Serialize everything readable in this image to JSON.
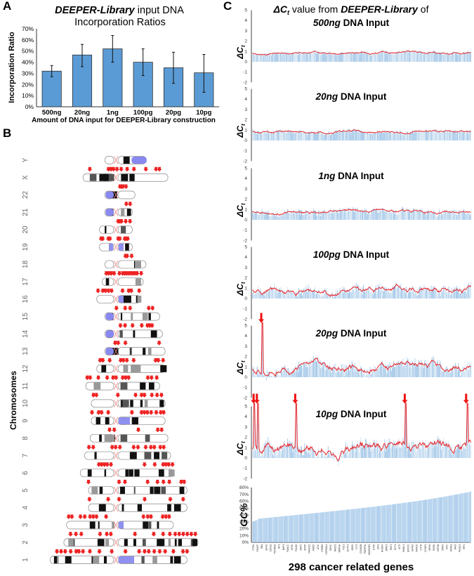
{
  "panels": {
    "a_letter": "A",
    "b_letter": "B",
    "c_letter": "C"
  },
  "chart_data": [
    {
      "id": "A",
      "type": "bar",
      "title_italic": "DEEPER-Library",
      "title_rest": " input DNA",
      "title_line2": "Incorporation Ratios",
      "xlabel": "Amount of DNA input for DEEPER-Library construction",
      "ylabel": "Incorporation Ratio",
      "categories": [
        "500ng",
        "20ng",
        "1ng",
        "100pg",
        "20pg",
        "10pg"
      ],
      "values": [
        0.32,
        0.465,
        0.52,
        0.4,
        0.35,
        0.305
      ],
      "error_low": [
        0.27,
        0.36,
        0.4,
        0.28,
        0.21,
        0.13
      ],
      "error_high": [
        0.37,
        0.56,
        0.64,
        0.52,
        0.49,
        0.47
      ],
      "ylim": [
        0,
        0.7
      ],
      "yticks": [
        "0%",
        "10%",
        "20%",
        "30%",
        "40%",
        "50%",
        "60%",
        "70%"
      ],
      "bar_color": "#5b9bd5",
      "grid": false
    },
    {
      "id": "B",
      "type": "ideogram",
      "ylabel": "Chromosomes",
      "chromosomes": [
        {
          "name": "Y",
          "p": 0.2,
          "q": 0.55,
          "marks": []
        },
        {
          "name": "X",
          "p": 0.6,
          "q": 0.95,
          "marks": [
            0.08,
            0.3,
            0.33,
            0.36,
            0.4,
            0.45,
            0.52,
            0.6,
            0.74,
            0.86,
            0.9
          ]
        },
        {
          "name": "22",
          "p": 0.2,
          "q": 0.35,
          "marks": [
            0.5,
            0.55,
            0.6,
            0.7
          ]
        },
        {
          "name": "21",
          "p": 0.2,
          "q": 0.3,
          "marks": [
            0.78,
            0.92
          ]
        },
        {
          "name": "20",
          "p": 0.3,
          "q": 0.3,
          "marks": [
            0.57,
            0.62,
            0.67,
            0.8,
            0.93
          ]
        },
        {
          "name": "19",
          "p": 0.3,
          "q": 0.3,
          "marks": [
            0.05,
            0.1,
            0.27,
            0.32,
            0.57,
            0.62,
            0.77,
            0.81,
            0.86
          ]
        },
        {
          "name": "18",
          "p": 0.2,
          "q": 0.55,
          "marks": [
            0.5,
            0.54,
            0.65
          ]
        },
        {
          "name": "17",
          "p": 0.25,
          "q": 0.5,
          "marks": [
            0.1,
            0.16,
            0.22,
            0.29,
            0.42,
            0.5,
            0.55,
            0.6,
            0.65,
            0.7,
            0.75,
            0.8,
            0.85,
            0.95
          ]
        },
        {
          "name": "16",
          "p": 0.35,
          "q": 0.45,
          "marks": [
            0.03,
            0.14,
            0.2,
            0.27,
            0.34,
            0.59,
            0.73,
            0.79,
            0.97
          ]
        },
        {
          "name": "15",
          "p": 0.2,
          "q": 0.8,
          "marks": [
            0.21,
            0.37,
            0.46,
            0.8,
            0.87
          ]
        },
        {
          "name": "14",
          "p": 0.2,
          "q": 0.85,
          "marks": [
            0.27,
            0.35,
            0.48,
            0.64,
            0.74,
            0.78,
            0.82
          ]
        },
        {
          "name": "13",
          "p": 0.2,
          "q": 0.9,
          "marks": [
            0.17,
            0.22,
            0.34,
            0.9
          ]
        },
        {
          "name": "12",
          "p": 0.35,
          "q": 0.9,
          "marks": [
            0.05,
            0.09,
            0.19,
            0.35,
            0.39,
            0.44,
            0.54,
            0.86,
            0.9,
            0.97
          ]
        },
        {
          "name": "11",
          "p": 0.55,
          "q": 0.8,
          "marks": [
            0.02,
            0.06,
            0.17,
            0.29,
            0.37,
            0.41,
            0.5,
            0.54,
            0.58,
            0.84,
            0.89,
            0.96
          ]
        },
        {
          "name": "10",
          "p": 0.45,
          "q": 0.9,
          "marks": [
            0.03,
            0.07,
            0.36,
            0.6,
            0.68,
            0.72,
            0.82,
            0.89,
            0.95
          ]
        },
        {
          "name": "9",
          "p": 0.45,
          "q": 0.9,
          "marks": [
            0.01,
            0.1,
            0.14,
            0.23,
            0.55,
            0.68,
            0.72,
            0.76,
            0.81,
            0.88,
            0.94,
            0.98
          ]
        },
        {
          "name": "8",
          "p": 0.47,
          "q": 0.95,
          "marks": [
            0.25,
            0.31,
            0.62,
            0.87,
            0.92
          ]
        },
        {
          "name": "7",
          "p": 0.57,
          "q": 1.0,
          "marks": [
            0.05,
            0.1,
            0.32,
            0.36,
            0.41,
            0.57,
            0.62,
            0.71,
            0.77,
            0.81,
            0.88,
            0.92
          ]
        },
        {
          "name": "6",
          "p": 0.65,
          "q": 1.05,
          "marks": [
            0.2,
            0.23,
            0.26,
            0.29,
            0.33,
            0.69,
            0.8,
            0.89,
            0.92,
            0.95,
            0.99
          ]
        },
        {
          "name": "5",
          "p": 0.5,
          "q": 1.3,
          "marks": [
            0.0,
            0.31,
            0.37,
            0.6,
            0.7,
            0.76,
            0.82,
            0.94,
            0.97
          ]
        },
        {
          "name": "4",
          "p": 0.5,
          "q": 1.3,
          "marks": [
            0.01,
            0.2,
            0.31,
            0.57,
            0.83,
            0.96
          ]
        },
        {
          "name": "3",
          "p": 0.9,
          "q": 1.05,
          "marks": [
            0.02,
            0.05,
            0.13,
            0.17,
            0.22,
            0.25,
            0.28,
            0.37,
            0.72,
            0.76,
            0.79,
            0.9,
            0.93,
            0.96
          ]
        },
        {
          "name": "2",
          "p": 0.95,
          "q": 1.5,
          "marks": [
            0.05,
            0.09,
            0.13,
            0.27,
            0.32,
            0.35,
            0.53,
            0.67,
            0.74,
            0.79,
            0.83,
            0.86,
            0.89,
            0.92,
            0.95,
            0.98
          ]
        },
        {
          "name": "1",
          "p": 1.2,
          "q": 1.3,
          "marks": [
            0.05,
            0.08,
            0.11,
            0.15,
            0.19,
            0.21,
            0.24,
            0.29,
            0.36,
            0.45,
            0.55,
            0.65,
            0.69,
            0.72,
            0.76,
            0.8,
            0.84,
            0.9,
            0.97,
            1.0
          ]
        }
      ]
    },
    {
      "id": "C",
      "type": "bar+line",
      "title_line1_prefix": "ΔC",
      "title_line1_sub": "t",
      "title_line1_mid": " value from ",
      "title_line1_italic": "DEEPER-Library",
      "title_line1_suffix": " of",
      "xlabel": "298 cancer related genes",
      "ylabel_main": "ΔC",
      "ylabel_sub": "t",
      "yticks": [
        "5",
        "4",
        "3",
        "2",
        "1",
        "0",
        "-1",
        "-2"
      ],
      "ylim": [
        -2,
        5
      ],
      "n_genes": 298,
      "bar_color": "#9dc3e6",
      "line_color": "#e8252a",
      "series": [
        {
          "name_italic": "500ng",
          "name_rest": " DNA Input",
          "level_mean": 0.85,
          "level_noise": 0.18,
          "bar_noise": 0.35,
          "seed": 1
        },
        {
          "name_italic": "20ng",
          "name_rest": " DNA Input",
          "level_mean": 0.85,
          "level_noise": 0.22,
          "bar_noise": 0.4,
          "seed": 2
        },
        {
          "name_italic": "1ng",
          "name_rest": " DNA Input",
          "level_mean": 0.8,
          "level_noise": 0.3,
          "bar_noise": 0.6,
          "seed": 3
        },
        {
          "name_italic": "100pg",
          "name_rest": " DNA Input",
          "level_mean": 0.85,
          "level_noise": 0.55,
          "bar_noise": 0.9,
          "seed": 4
        },
        {
          "name_italic": "20pg",
          "name_rest": " DNA Input",
          "level_mean": 0.9,
          "level_noise": 0.7,
          "bar_noise": 1.0,
          "seed": 5,
          "outliers": [
            0.045
          ],
          "outlier_arrows": [
            0.045
          ]
        },
        {
          "name_italic": "10pg",
          "name_rest": " DNA Input",
          "level_mean": 1.1,
          "level_noise": 1.0,
          "bar_noise": 1.2,
          "seed": 6,
          "outliers": [
            0.01,
            0.025,
            0.2,
            0.7,
            0.98
          ],
          "outlier_arrows": [
            0.01,
            0.025,
            0.2,
            0.7,
            0.98
          ]
        }
      ],
      "gc": {
        "ylabel": "GC%",
        "yticks": [
          "80%",
          "70%",
          "60%",
          "50%",
          "40%",
          "30%",
          "20%",
          "10%",
          "0%"
        ],
        "ylim": [
          0,
          0.8
        ],
        "start": 0.3,
        "end": 0.74,
        "gene_labels": [
          "PTEN",
          "FANCF",
          "RB1",
          "SDHD",
          "CDK12",
          "PIK3R1A",
          "NF1",
          "BAP1",
          "FANCC",
          "ATRX",
          "PALB2",
          "MEF2",
          "SPOP",
          "FANCD2",
          "ARID2",
          "ATIC",
          "CREB3",
          "HSPD8A1",
          "SDHC",
          "RAD51",
          "BRIP1A",
          "TSC1",
          "GSTP1",
          "SBDS",
          "FLT3",
          "CDKN2B",
          "PDGFRA",
          "SMARCB1",
          "ETV6",
          "EIA1",
          "NCOA4",
          "BIRC3",
          "RAF1",
          "EXT1",
          "WT2",
          "MAML1",
          "ERCC2",
          "GATA2",
          "FANCE",
          "CHTA",
          "CCNE1",
          "ARHN",
          "RARA",
          "CEP18",
          "BRD4",
          "MYC",
          "GNA11",
          "JAK3",
          "PIK3C3",
          "IRF4"
        ]
      }
    }
  ]
}
